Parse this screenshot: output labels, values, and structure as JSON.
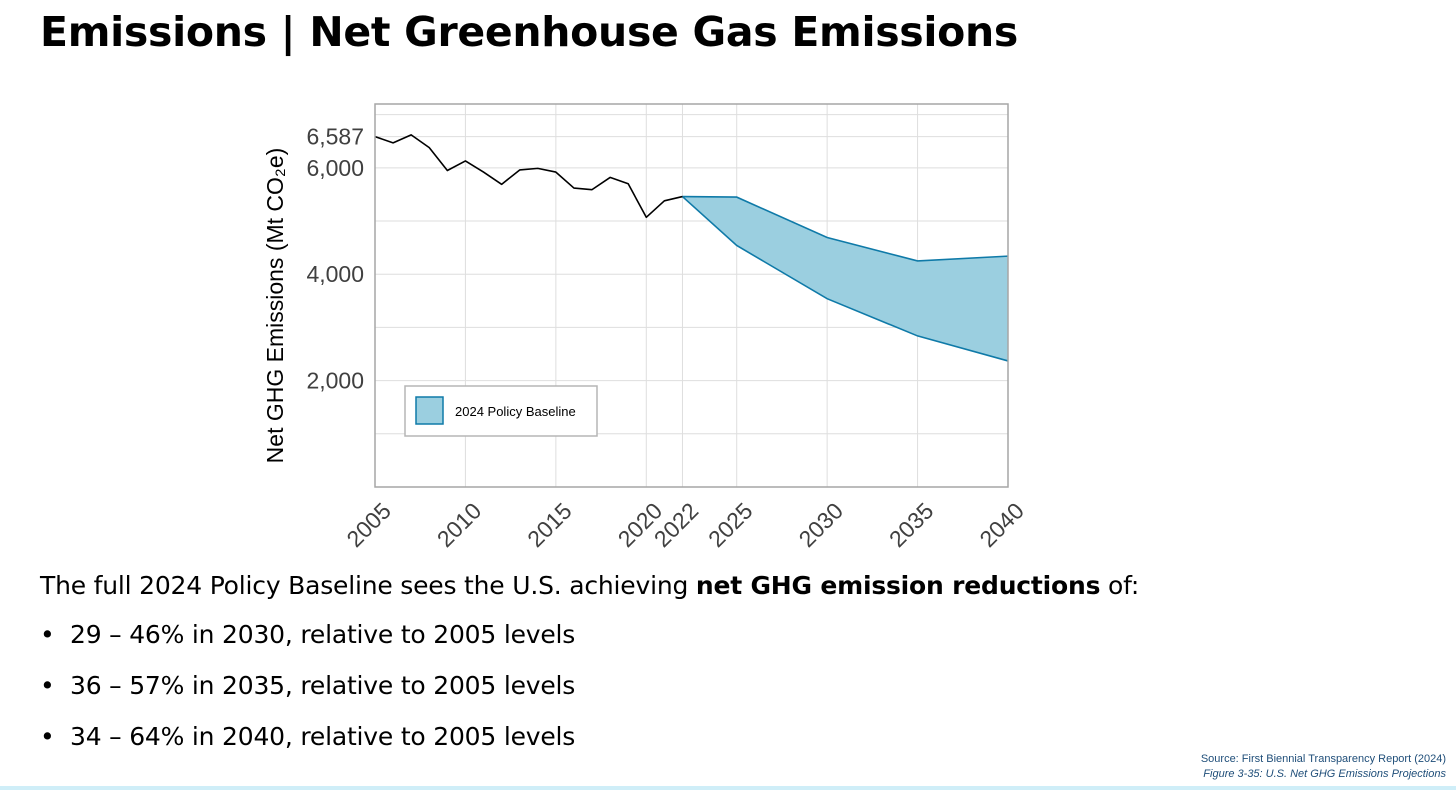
{
  "slide": {
    "title": "Emissions | Net Greenhouse Gas Emissions",
    "summary_prefix": "The full 2024 Policy Baseline sees the U.S. achieving ",
    "summary_bold": "net GHG emission reductions",
    "summary_suffix": " of:",
    "bullets": [
      "29 – 46% in 2030, relative to 2005 levels",
      "36 – 57% in 2035, relative to 2005 levels",
      "34 – 64% in 2040, relative to 2005 levels"
    ],
    "bullet_symbol": "•",
    "source_line": "Source: First Biennial Transparency Report (2024)",
    "figure_caption": "Figure 3-35: U.S. Net GHG Emissions Projections"
  },
  "chart_data": {
    "type": "area",
    "ylabel": "Net GHG Emissions (Mt CO₂e)",
    "xlabel": "",
    "xlim": [
      2005,
      2040
    ],
    "ylim": [
      0,
      7200
    ],
    "xticks": [
      2005,
      2010,
      2015,
      2020,
      2022,
      2025,
      2030,
      2035,
      2040
    ],
    "yticks": [
      {
        "value": 2000,
        "label": "2,000"
      },
      {
        "value": 4000,
        "label": "4,000"
      },
      {
        "value": 6000,
        "label": "6,000"
      },
      {
        "value": 6587,
        "label": "6,587"
      }
    ],
    "x_grid": [
      2005,
      2010,
      2015,
      2020,
      2022,
      2025,
      2030,
      2035,
      2040
    ],
    "y_grid": [
      1000,
      2000,
      3000,
      4000,
      5000,
      6000,
      6587,
      7000
    ],
    "grid": true,
    "historical": {
      "x": [
        2005,
        2006,
        2007,
        2008,
        2009,
        2010,
        2011,
        2012,
        2013,
        2014,
        2015,
        2016,
        2017,
        2018,
        2019,
        2020,
        2021,
        2022
      ],
      "y": [
        6587,
        6470,
        6620,
        6380,
        5950,
        6130,
        5920,
        5690,
        5960,
        5990,
        5920,
        5620,
        5590,
        5820,
        5700,
        5070,
        5380,
        5460
      ]
    },
    "series": [
      {
        "name": "2024 Policy Baseline",
        "x": [
          2022,
          2025,
          2030,
          2035,
          2040
        ],
        "upper": [
          5460,
          5450,
          4690,
          4250,
          4340
        ],
        "lower": [
          5460,
          4540,
          3540,
          2840,
          2370
        ]
      }
    ],
    "legend_position": "bottom-left",
    "colors": {
      "band_fill": "#9bcfe0",
      "band_edge": "#0f7aa8",
      "history_line": "#000000",
      "grid": "#dedede",
      "frame": "#a6a6a6",
      "tick_text": "#404040"
    }
  }
}
